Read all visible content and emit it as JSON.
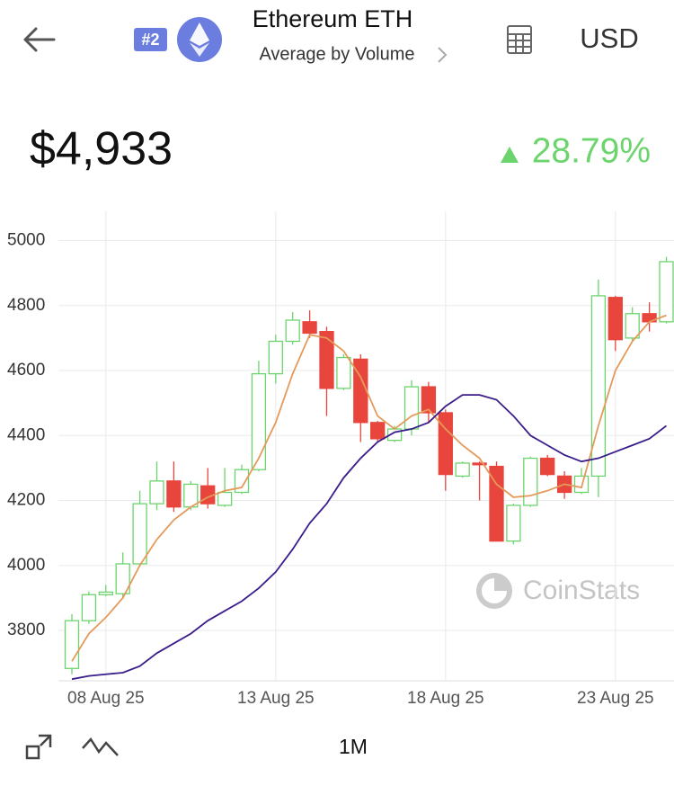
{
  "header": {
    "rank": "#2",
    "title": "Ethereum ETH",
    "subtitle": "Average by Volume",
    "currency": "USD"
  },
  "price": {
    "value": "$4,933",
    "change": "28.79%"
  },
  "watermark": "CoinStats",
  "range": "1M",
  "chart_data": {
    "type": "candlestick",
    "categories": [
      null,
      null,
      "08 Aug 25",
      null,
      null,
      null,
      null,
      null,
      null,
      null,
      null,
      null,
      "13 Aug 25",
      null,
      null,
      null,
      null,
      null,
      null,
      null,
      null,
      null,
      "18 Aug 25",
      null,
      null,
      null,
      null,
      null,
      null,
      null,
      null,
      null,
      "23 Aug 25",
      null,
      null,
      null
    ],
    "open": [
      3683,
      3830,
      3910,
      3913,
      4005,
      4190,
      4260,
      4180,
      4245,
      4185,
      4225,
      4295,
      4590,
      4690,
      4750,
      4720,
      4545,
      4635,
      4440,
      4385,
      4420,
      4550,
      4470,
      4275,
      4315,
      4305,
      4075,
      4185,
      4330,
      4275,
      4225,
      4275,
      4825,
      4700,
      4775,
      4750
    ],
    "high": [
      3850,
      3920,
      3940,
      4040,
      4230,
      4320,
      4320,
      4260,
      4300,
      4300,
      4310,
      4630,
      4710,
      4780,
      4785,
      4735,
      4650,
      4650,
      4445,
      4430,
      4570,
      4565,
      4480,
      4320,
      4320,
      4320,
      4190,
      4335,
      4340,
      4290,
      4300,
      4880,
      4830,
      4795,
      4810,
      4950
    ],
    "low": [
      3665,
      3820,
      3905,
      3900,
      4000,
      4170,
      4165,
      4170,
      4175,
      4180,
      4220,
      4290,
      4560,
      4680,
      4700,
      4460,
      4540,
      4380,
      4380,
      4380,
      4400,
      4440,
      4230,
      4270,
      4200,
      4075,
      4065,
      4180,
      4275,
      4205,
      4220,
      4210,
      4660,
      4690,
      4720,
      4745
    ],
    "close": [
      3830,
      3910,
      3918,
      4005,
      4190,
      4260,
      4180,
      4250,
      4190,
      4225,
      4295,
      4590,
      4690,
      4755,
      4715,
      4545,
      4640,
      4440,
      4390,
      4420,
      4550,
      4470,
      4280,
      4315,
      4310,
      4075,
      4185,
      4330,
      4280,
      4225,
      4275,
      4830,
      4695,
      4775,
      4750,
      4935
    ],
    "up_color": "#6cd46c",
    "down_color": "#e8453c",
    "series": [
      {
        "color": "#e39a5a",
        "values": [
          3705,
          3790,
          3840,
          3900,
          4000,
          4080,
          4140,
          4180,
          4210,
          4230,
          4240,
          4330,
          4440,
          4590,
          4710,
          4700,
          4660,
          4580,
          4460,
          4420,
          4460,
          4480,
          4420,
          4370,
          4330,
          4250,
          4210,
          4215,
          4230,
          4250,
          4240,
          4430,
          4600,
          4690,
          4750,
          4770
        ]
      },
      {
        "color": "#3a1d8a",
        "values": [
          3650,
          3660,
          3665,
          3670,
          3690,
          3730,
          3760,
          3790,
          3830,
          3860,
          3890,
          3930,
          3980,
          4050,
          4130,
          4190,
          4270,
          4330,
          4380,
          4410,
          4420,
          4440,
          4490,
          4525,
          4525,
          4510,
          4460,
          4400,
          4370,
          4340,
          4320,
          4330,
          4350,
          4370,
          4390,
          4430
        ]
      }
    ],
    "ylim": [
      3645,
      5090
    ],
    "yticks": [
      3800,
      4000,
      4200,
      4400,
      4600,
      4800,
      5000
    ],
    "grid": true
  }
}
